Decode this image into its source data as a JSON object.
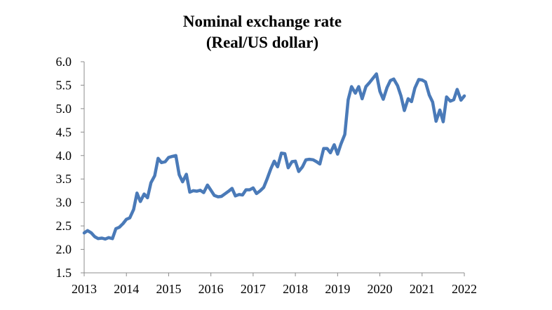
{
  "chart_data": {
    "type": "line",
    "title": "Nominal exchange rate",
    "subtitle": "(Real/US dollar)",
    "xlabel": "",
    "ylabel": "",
    "xlim": [
      2013,
      2022
    ],
    "ylim": [
      1.5,
      6.0
    ],
    "y_ticks": [
      "1.5",
      "2.0",
      "2.5",
      "3.0",
      "3.5",
      "4.0",
      "4.5",
      "5.0",
      "5.5",
      "6.0"
    ],
    "x_ticks": [
      "2013",
      "2014",
      "2015",
      "2016",
      "2017",
      "2018",
      "2019",
      "2020",
      "2021",
      "2022"
    ],
    "grid": false,
    "legend": "none",
    "line_color": "#4a7ab8",
    "series": [
      {
        "name": "Real/US dollar",
        "x": [
          2013.0,
          2013.08,
          2013.17,
          2013.25,
          2013.33,
          2013.42,
          2013.5,
          2013.58,
          2013.67,
          2013.75,
          2013.83,
          2013.92,
          2014.0,
          2014.08,
          2014.17,
          2014.25,
          2014.33,
          2014.42,
          2014.5,
          2014.58,
          2014.67,
          2014.75,
          2014.83,
          2014.92,
          2015.0,
          2015.08,
          2015.17,
          2015.25,
          2015.33,
          2015.42,
          2015.5,
          2015.58,
          2015.67,
          2015.75,
          2015.83,
          2015.92,
          2016.0,
          2016.08,
          2016.17,
          2016.25,
          2016.33,
          2016.42,
          2016.5,
          2016.58,
          2016.67,
          2016.75,
          2016.83,
          2016.92,
          2017.0,
          2017.08,
          2017.17,
          2017.25,
          2017.33,
          2017.42,
          2017.5,
          2017.58,
          2017.67,
          2017.75,
          2017.83,
          2017.92,
          2018.0,
          2018.08,
          2018.17,
          2018.25,
          2018.33,
          2018.42,
          2018.5,
          2018.58,
          2018.67,
          2018.75,
          2018.83,
          2018.92,
          2019.0,
          2019.08,
          2019.17,
          2019.25,
          2019.33,
          2019.42,
          2019.5,
          2019.58,
          2019.67,
          2019.75,
          2019.83,
          2019.92,
          2020.0,
          2020.08,
          2020.17,
          2020.25,
          2020.33,
          2020.42,
          2020.5,
          2020.58,
          2020.67,
          2020.75,
          2020.83,
          2020.92,
          2021.0,
          2021.08,
          2021.17,
          2021.25,
          2021.33,
          2021.42,
          2021.5,
          2021.58,
          2021.67,
          2021.75,
          2021.83,
          2021.92,
          2022.0
        ],
        "values": [
          2.35,
          2.4,
          2.35,
          2.27,
          2.23,
          2.24,
          2.22,
          2.25,
          2.23,
          2.44,
          2.47,
          2.55,
          2.64,
          2.67,
          2.85,
          3.2,
          3.02,
          3.18,
          3.1,
          3.42,
          3.57,
          3.94,
          3.85,
          3.87,
          3.96,
          3.98,
          4.0,
          3.59,
          3.44,
          3.6,
          3.22,
          3.25,
          3.24,
          3.26,
          3.21,
          3.37,
          3.26,
          3.15,
          3.12,
          3.13,
          3.18,
          3.24,
          3.3,
          3.14,
          3.17,
          3.16,
          3.27,
          3.27,
          3.31,
          3.19,
          3.25,
          3.32,
          3.5,
          3.72,
          3.88,
          3.76,
          4.05,
          4.04,
          3.74,
          3.87,
          3.88,
          3.66,
          3.76,
          3.91,
          3.92,
          3.91,
          3.87,
          3.82,
          4.15,
          4.15,
          4.06,
          4.23,
          4.03,
          4.25,
          4.45,
          5.19,
          5.47,
          5.33,
          5.47,
          5.21,
          5.47,
          5.55,
          5.64,
          5.74,
          5.37,
          5.2,
          5.45,
          5.6,
          5.63,
          5.49,
          5.27,
          4.96,
          5.21,
          5.15,
          5.44,
          5.62,
          5.61,
          5.57,
          5.29,
          5.14,
          4.73,
          4.97,
          4.72,
          5.25,
          5.16,
          5.19,
          5.41,
          5.18,
          5.27
        ]
      }
    ]
  }
}
